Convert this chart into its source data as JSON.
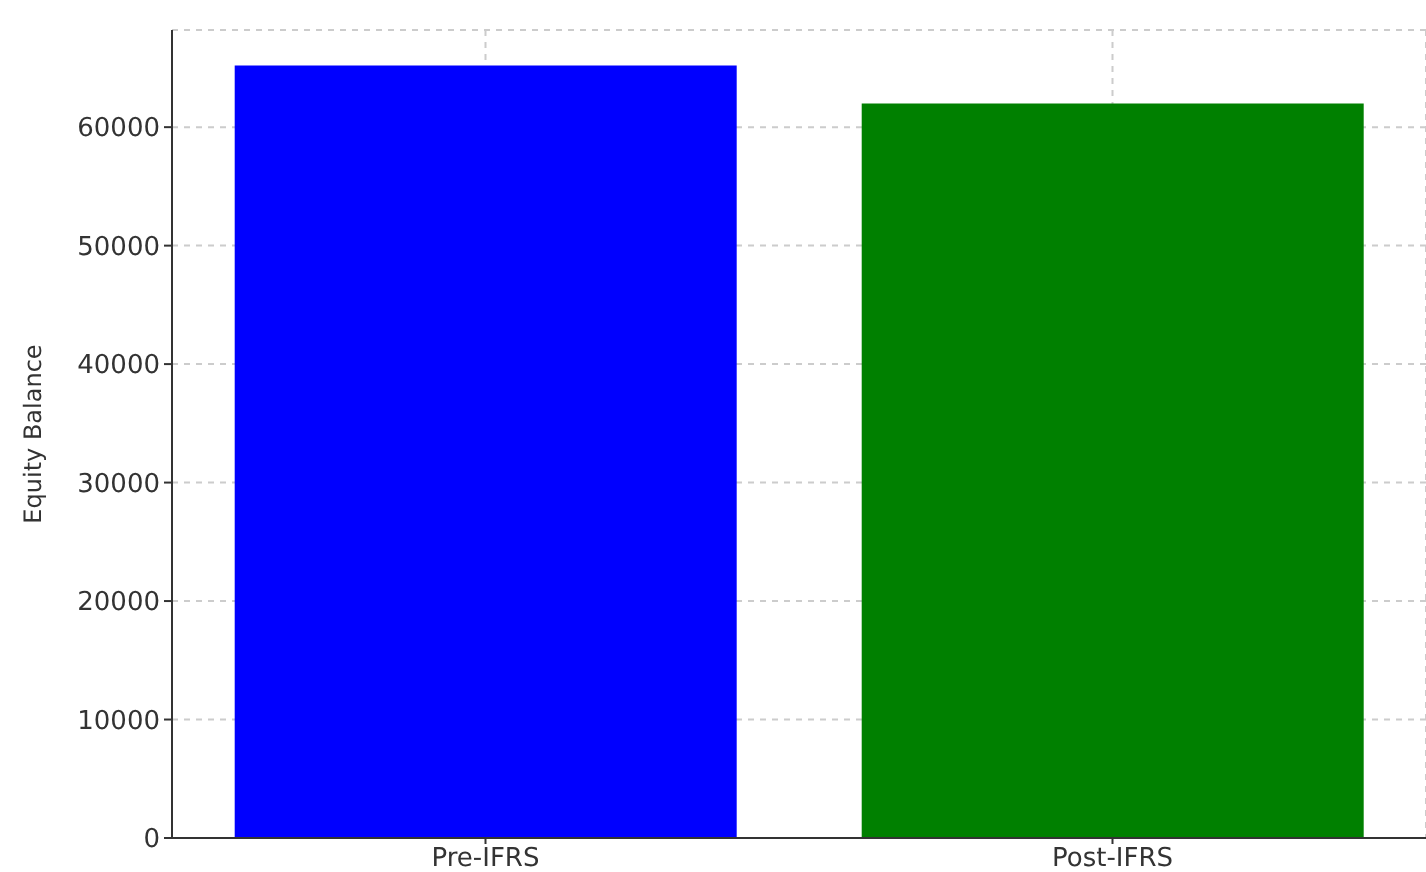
{
  "chart_data": {
    "type": "bar",
    "ylabel": "Equity Balance",
    "categories": [
      "Pre-IFRS",
      "Post-IFRS"
    ],
    "values": [
      65200,
      62000
    ],
    "colors": [
      "#0000ff",
      "#008000"
    ],
    "ylim": [
      0,
      68200
    ],
    "yticks": [
      0,
      10000,
      20000,
      30000,
      40000,
      50000,
      60000
    ],
    "grid": true
  }
}
